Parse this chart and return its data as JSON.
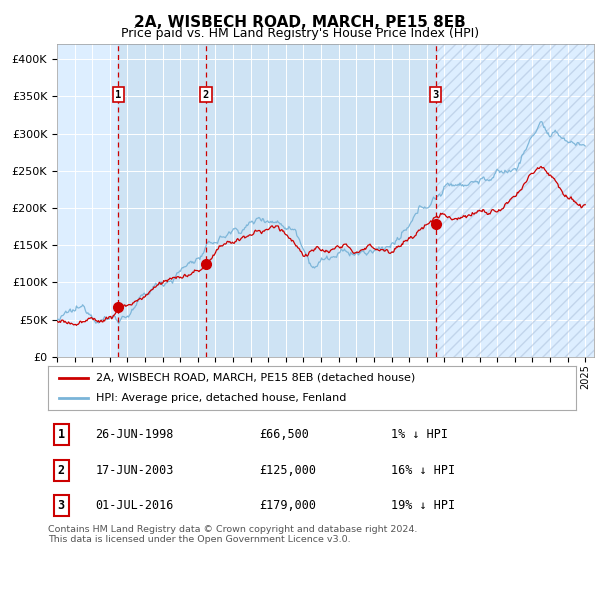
{
  "title": "2A, WISBECH ROAD, MARCH, PE15 8EB",
  "subtitle": "Price paid vs. HM Land Registry's House Price Index (HPI)",
  "title_fontsize": 11,
  "subtitle_fontsize": 9,
  "ylim": [
    0,
    420000
  ],
  "xlim_start": 1995.0,
  "xlim_end": 2025.5,
  "background_color": "#ffffff",
  "plot_bg_color": "#ddeeff",
  "grid_color": "#ffffff",
  "hpi_line_color": "#7ab4d8",
  "price_line_color": "#cc0000",
  "sale_marker_color": "#cc0000",
  "vline_color": "#cc0000",
  "sales": [
    {
      "date_num": 1998.48,
      "price": 66500,
      "label": "1"
    },
    {
      "date_num": 2003.46,
      "price": 125000,
      "label": "2"
    },
    {
      "date_num": 2016.5,
      "price": 179000,
      "label": "3"
    }
  ],
  "sale_labels_info": [
    {
      "label": "1",
      "date": "26-JUN-1998",
      "price": "£66,500",
      "hpi_diff": "1% ↓ HPI"
    },
    {
      "label": "2",
      "date": "17-JUN-2003",
      "price": "£125,000",
      "hpi_diff": "16% ↓ HPI"
    },
    {
      "label": "3",
      "date": "01-JUL-2016",
      "price": "£179,000",
      "hpi_diff": "19% ↓ HPI"
    }
  ],
  "legend_entries": [
    "2A, WISBECH ROAD, MARCH, PE15 8EB (detached house)",
    "HPI: Average price, detached house, Fenland"
  ],
  "footer_text": "Contains HM Land Registry data © Crown copyright and database right 2024.\nThis data is licensed under the Open Government Licence v3.0.",
  "ytick_labels": [
    "£0",
    "£50K",
    "£100K",
    "£150K",
    "£200K",
    "£250K",
    "£300K",
    "£350K",
    "£400K"
  ],
  "ytick_values": [
    0,
    50000,
    100000,
    150000,
    200000,
    250000,
    300000,
    350000,
    400000
  ]
}
